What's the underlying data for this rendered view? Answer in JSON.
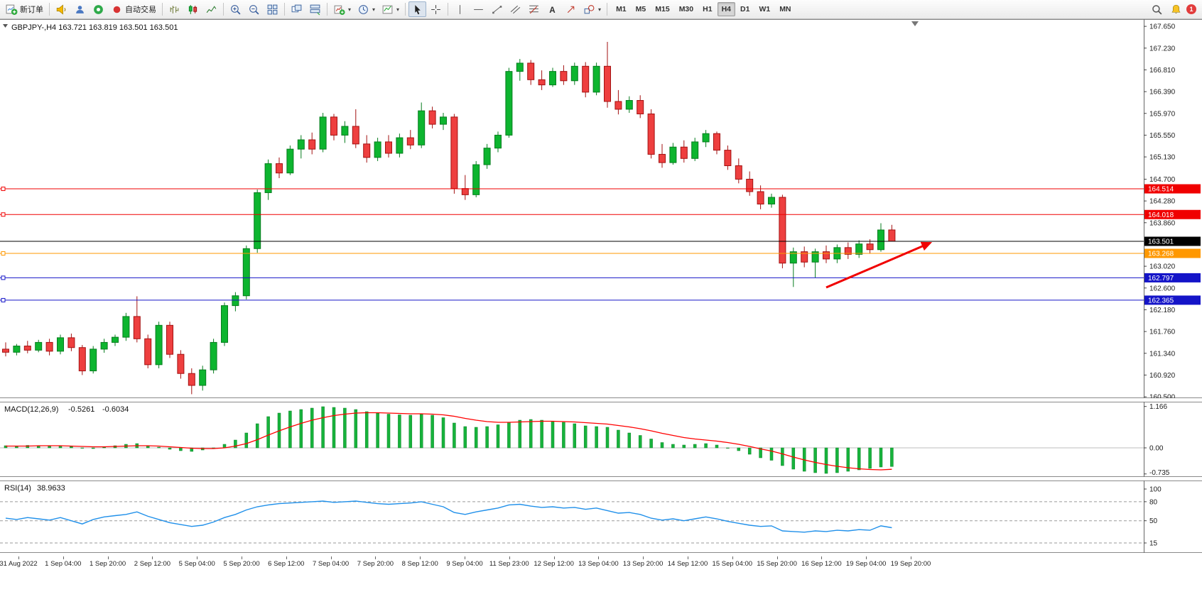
{
  "toolbar": {
    "new_order_label": "新订单",
    "autotrading_label": "自动交易",
    "timeframes": [
      "M1",
      "M5",
      "M15",
      "M30",
      "H1",
      "H4",
      "D1",
      "W1",
      "MN"
    ],
    "active_timeframe": "H4",
    "notification_count": "1"
  },
  "chart": {
    "header": "GBPJPY-,H4 163.721 163.819 163.501 163.501"
  },
  "chart_data": {
    "type": "candlestick",
    "symbol": "GBPJPY-",
    "period": "H4",
    "ohlc_quote": {
      "open": "163.721",
      "high": "163.819",
      "low": "163.501",
      "close": "163.501"
    },
    "up_color": "#0db52f",
    "down_color": "#ee3f3f",
    "price_axis_ticks": [
      "167.650",
      "167.230",
      "166.810",
      "166.390",
      "165.970",
      "165.550",
      "165.130",
      "164.700",
      "164.280",
      "163.860",
      "163.020",
      "162.600",
      "162.180",
      "161.760",
      "161.340",
      "160.920",
      "160.500"
    ],
    "time_labels": [
      "31 Aug 2022",
      "1 Sep 04:00",
      "1 Sep 20:00",
      "2 Sep 12:00",
      "5 Sep 04:00",
      "5 Sep 20:00",
      "6 Sep 12:00",
      "7 Sep 04:00",
      "7 Sep 20:00",
      "8 Sep 12:00",
      "9 Sep 04:00",
      "11 Sep 23:00",
      "12 Sep 12:00",
      "13 Sep 04:00",
      "13 Sep 20:00",
      "14 Sep 12:00",
      "15 Sep 04:00",
      "15 Sep 20:00",
      "16 Sep 12:00",
      "19 Sep 04:00",
      "19 Sep 20:00"
    ],
    "candles": [
      [
        161.42,
        161.55,
        161.28,
        161.36
      ],
      [
        161.36,
        161.52,
        161.3,
        161.48
      ],
      [
        161.48,
        161.58,
        161.34,
        161.4
      ],
      [
        161.4,
        161.6,
        161.36,
        161.55
      ],
      [
        161.55,
        161.62,
        161.3,
        161.38
      ],
      [
        161.38,
        161.7,
        161.32,
        161.64
      ],
      [
        161.64,
        161.72,
        161.38,
        161.45
      ],
      [
        161.45,
        161.5,
        160.92,
        161.0
      ],
      [
        161.0,
        161.48,
        160.95,
        161.42
      ],
      [
        161.42,
        161.62,
        161.35,
        161.55
      ],
      [
        161.55,
        161.7,
        161.48,
        161.65
      ],
      [
        161.65,
        162.12,
        161.58,
        162.05
      ],
      [
        162.05,
        162.44,
        161.55,
        161.62
      ],
      [
        161.62,
        161.7,
        161.05,
        161.12
      ],
      [
        161.12,
        161.95,
        161.05,
        161.88
      ],
      [
        161.88,
        161.95,
        161.25,
        161.32
      ],
      [
        161.32,
        161.4,
        160.85,
        160.95
      ],
      [
        160.95,
        161.05,
        160.55,
        160.72
      ],
      [
        160.72,
        161.1,
        160.62,
        161.02
      ],
      [
        161.02,
        161.62,
        160.95,
        161.55
      ],
      [
        161.55,
        162.32,
        161.48,
        162.26
      ],
      [
        162.26,
        162.52,
        162.15,
        162.45
      ],
      [
        162.45,
        163.42,
        162.38,
        163.36
      ],
      [
        163.36,
        164.5,
        163.28,
        164.44
      ],
      [
        164.44,
        165.08,
        164.3,
        165.0
      ],
      [
        165.0,
        165.12,
        164.72,
        164.82
      ],
      [
        164.82,
        165.35,
        164.78,
        165.28
      ],
      [
        165.28,
        165.55,
        165.1,
        165.46
      ],
      [
        165.46,
        165.6,
        165.18,
        165.28
      ],
      [
        165.28,
        165.98,
        165.22,
        165.9
      ],
      [
        165.9,
        165.96,
        165.45,
        165.55
      ],
      [
        165.55,
        165.82,
        165.4,
        165.72
      ],
      [
        165.72,
        166.05,
        165.3,
        165.38
      ],
      [
        165.38,
        165.55,
        165.02,
        165.12
      ],
      [
        165.12,
        165.5,
        165.05,
        165.42
      ],
      [
        165.42,
        165.55,
        165.12,
        165.2
      ],
      [
        165.2,
        165.58,
        165.12,
        165.5
      ],
      [
        165.5,
        165.65,
        165.28,
        165.36
      ],
      [
        165.36,
        166.18,
        165.3,
        166.02
      ],
      [
        166.02,
        166.1,
        165.68,
        165.76
      ],
      [
        165.76,
        165.98,
        165.65,
        165.9
      ],
      [
        165.9,
        165.96,
        164.42,
        164.52
      ],
      [
        164.52,
        164.78,
        164.3,
        164.4
      ],
      [
        164.4,
        165.05,
        164.35,
        164.98
      ],
      [
        164.98,
        165.38,
        164.9,
        165.3
      ],
      [
        165.3,
        165.62,
        165.22,
        165.55
      ],
      [
        165.55,
        166.85,
        165.5,
        166.78
      ],
      [
        166.78,
        167.02,
        166.6,
        166.94
      ],
      [
        166.94,
        167.0,
        166.52,
        166.62
      ],
      [
        166.62,
        166.8,
        166.42,
        166.52
      ],
      [
        166.52,
        166.85,
        166.48,
        166.78
      ],
      [
        166.78,
        166.9,
        166.52,
        166.6
      ],
      [
        166.6,
        166.95,
        166.52,
        166.88
      ],
      [
        166.88,
        166.96,
        166.28,
        166.38
      ],
      [
        166.38,
        166.95,
        166.32,
        166.88
      ],
      [
        166.88,
        167.35,
        166.08,
        166.2
      ],
      [
        166.2,
        166.42,
        165.95,
        166.05
      ],
      [
        166.05,
        166.3,
        165.98,
        166.22
      ],
      [
        166.22,
        166.32,
        165.88,
        165.96
      ],
      [
        165.96,
        166.05,
        165.1,
        165.18
      ],
      [
        165.18,
        165.38,
        164.92,
        165.02
      ],
      [
        165.02,
        165.4,
        164.98,
        165.32
      ],
      [
        165.32,
        165.45,
        165.02,
        165.1
      ],
      [
        165.1,
        165.5,
        165.05,
        165.42
      ],
      [
        165.42,
        165.65,
        165.32,
        165.58
      ],
      [
        165.58,
        165.62,
        165.18,
        165.26
      ],
      [
        165.26,
        165.35,
        164.88,
        164.96
      ],
      [
        164.96,
        165.1,
        164.62,
        164.7
      ],
      [
        164.7,
        164.85,
        164.38,
        164.46
      ],
      [
        164.46,
        164.58,
        164.12,
        164.22
      ],
      [
        164.22,
        164.42,
        164.15,
        164.35
      ],
      [
        164.35,
        164.4,
        162.98,
        163.08
      ],
      [
        163.08,
        163.38,
        162.62,
        163.3
      ],
      [
        163.3,
        163.4,
        163.0,
        163.1
      ],
      [
        163.1,
        163.36,
        162.8,
        163.3
      ],
      [
        163.3,
        163.42,
        163.08,
        163.16
      ],
      [
        163.16,
        163.44,
        163.08,
        163.38
      ],
      [
        163.38,
        163.48,
        163.16,
        163.25
      ],
      [
        163.25,
        163.52,
        163.18,
        163.45
      ],
      [
        163.45,
        163.54,
        163.26,
        163.34
      ],
      [
        163.34,
        163.85,
        163.3,
        163.72
      ],
      [
        163.721,
        163.819,
        163.501,
        163.501
      ]
    ],
    "levels": [
      {
        "price": 164.514,
        "label": "164.514",
        "color": "#f00000",
        "handle": true
      },
      {
        "price": 164.018,
        "label": "164.018",
        "color": "#f00000",
        "handle": true
      },
      {
        "price": 163.501,
        "label": "163.501",
        "color": "#000000",
        "handle": false
      },
      {
        "price": 163.268,
        "label": "163.268",
        "color": "#ff9800",
        "handle": true
      },
      {
        "price": 162.797,
        "label": "162.797",
        "color": "#1414c8",
        "handle": true
      },
      {
        "price": 162.365,
        "label": "162.365",
        "color": "#1414c8",
        "handle": true
      }
    ],
    "trend_arrow": {
      "from_index": 75,
      "from_price": 162.61,
      "to_index": 84.5,
      "to_price": 163.47,
      "color": "#f00000"
    },
    "macd": {
      "label": "MACD(12,26,9)",
      "value_main": "-0.5261",
      "value_signal": "-0.6034",
      "axis_ticks": [
        {
          "label": "1.166",
          "value": 1.166
        },
        {
          "label": "0.00",
          "value": 0
        },
        {
          "label": "-0.735",
          "value": -0.735
        }
      ],
      "histogram_color": "#17b33c",
      "signal_color": "#ff0000",
      "histogram": [
        0.06,
        0.05,
        0.07,
        0.06,
        0.05,
        0.06,
        0.04,
        0,
        -0.02,
        0.02,
        0.06,
        0.1,
        0.12,
        0.06,
        0.02,
        -0.04,
        -0.08,
        -0.1,
        -0.06,
        0,
        0.1,
        0.22,
        0.42,
        0.68,
        0.88,
        0.98,
        1.04,
        1.08,
        1.12,
        1.16,
        1.14,
        1.12,
        1.08,
        1.02,
        0.98,
        0.95,
        0.93,
        0.92,
        0.95,
        0.92,
        0.85,
        0.7,
        0.6,
        0.58,
        0.6,
        0.65,
        0.72,
        0.78,
        0.8,
        0.78,
        0.75,
        0.72,
        0.68,
        0.62,
        0.6,
        0.58,
        0.5,
        0.42,
        0.35,
        0.25,
        0.15,
        0.1,
        0.08,
        0.1,
        0.12,
        0.08,
        0,
        -0.08,
        -0.18,
        -0.28,
        -0.35,
        -0.5,
        -0.6,
        -0.66,
        -0.7,
        -0.72,
        -0.7,
        -0.66,
        -0.62,
        -0.58,
        -0.54,
        -0.5261
      ],
      "signal": [
        0.05,
        0.05,
        0.05,
        0.06,
        0.06,
        0.06,
        0.05,
        0.04,
        0.03,
        0.03,
        0.04,
        0.05,
        0.06,
        0.06,
        0.05,
        0.03,
        0.01,
        -0.01,
        -0.02,
        -0.02,
        0,
        0.05,
        0.12,
        0.23,
        0.36,
        0.48,
        0.59,
        0.69,
        0.78,
        0.85,
        0.91,
        0.95,
        0.98,
        0.99,
        0.99,
        0.98,
        0.97,
        0.96,
        0.96,
        0.95,
        0.93,
        0.89,
        0.83,
        0.78,
        0.74,
        0.72,
        0.72,
        0.73,
        0.74,
        0.75,
        0.75,
        0.74,
        0.73,
        0.71,
        0.69,
        0.67,
        0.63,
        0.59,
        0.54,
        0.48,
        0.41,
        0.35,
        0.29,
        0.25,
        0.22,
        0.19,
        0.15,
        0.1,
        0.04,
        -0.03,
        -0.09,
        -0.17,
        -0.26,
        -0.34,
        -0.41,
        -0.47,
        -0.52,
        -0.56,
        -0.59,
        -0.61,
        -0.62,
        -0.6034
      ]
    },
    "rsi": {
      "label": "RSI(14)",
      "value": "38.9633",
      "color": "#2090ea",
      "levels": [
        80,
        50,
        15
      ],
      "axis_ticks": [
        {
          "label": "100",
          "value": 100
        },
        {
          "label": "80",
          "value": 80
        },
        {
          "label": "50",
          "value": 50
        },
        {
          "label": "15",
          "value": 15
        }
      ],
      "values": [
        54,
        52,
        55,
        53,
        51,
        55,
        50,
        45,
        52,
        56,
        58,
        60,
        64,
        57,
        52,
        47,
        44,
        41,
        43,
        48,
        55,
        60,
        67,
        72,
        75,
        77,
        78,
        79,
        80,
        81,
        79,
        80,
        81,
        79,
        77,
        76,
        77,
        78,
        80,
        76,
        72,
        63,
        60,
        64,
        67,
        70,
        75,
        76,
        73,
        71,
        72,
        70,
        71,
        68,
        70,
        66,
        62,
        63,
        60,
        54,
        51,
        53,
        50,
        53,
        56,
        53,
        49,
        46,
        43,
        41,
        42,
        34,
        33,
        32,
        34,
        33,
        35,
        34,
        36,
        35,
        42,
        39
      ]
    }
  }
}
